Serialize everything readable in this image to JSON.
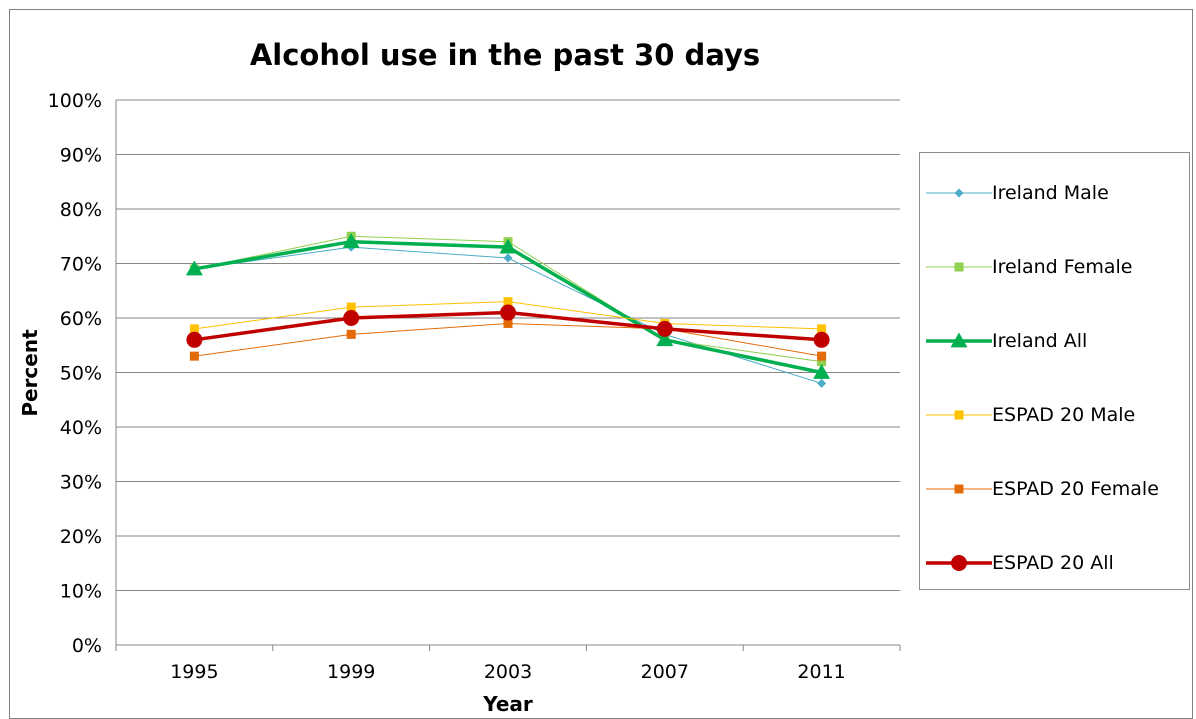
{
  "chart_data": {
    "type": "line",
    "title": "Alcohol use in the past 30 days",
    "xlabel": "Year",
    "ylabel": "Percent",
    "categories": [
      "1995",
      "1999",
      "2003",
      "2007",
      "2011"
    ],
    "ylim": [
      0,
      100
    ],
    "yticks": [
      "0%",
      "10%",
      "20%",
      "30%",
      "40%",
      "50%",
      "60%",
      "70%",
      "80%",
      "90%",
      "100%"
    ],
    "grid": true,
    "legend_position": "right",
    "series": [
      {
        "name": "Ireland Male",
        "values": [
          69,
          73,
          71,
          57,
          48
        ],
        "color": "#4bacc6",
        "marker": "diamond",
        "width": 1
      },
      {
        "name": "Ireland Female",
        "values": [
          69,
          75,
          74,
          56,
          52
        ],
        "color": "#92d050",
        "marker": "square",
        "width": 1
      },
      {
        "name": "Ireland All",
        "values": [
          69,
          74,
          73,
          56,
          50
        ],
        "color": "#00b050",
        "marker": "triangle",
        "width": 3.5
      },
      {
        "name": "ESPAD 20 Male",
        "values": [
          58,
          62,
          63,
          59,
          58
        ],
        "color": "#ffc000",
        "marker": "square",
        "width": 1
      },
      {
        "name": "ESPAD 20 Female",
        "values": [
          53,
          57,
          59,
          58,
          53
        ],
        "color": "#e36c09",
        "marker": "square",
        "width": 1
      },
      {
        "name": "ESPAD 20 All",
        "values": [
          56,
          60,
          61,
          58,
          56
        ],
        "color": "#c00000",
        "marker": "circle",
        "width": 3.5
      }
    ]
  }
}
